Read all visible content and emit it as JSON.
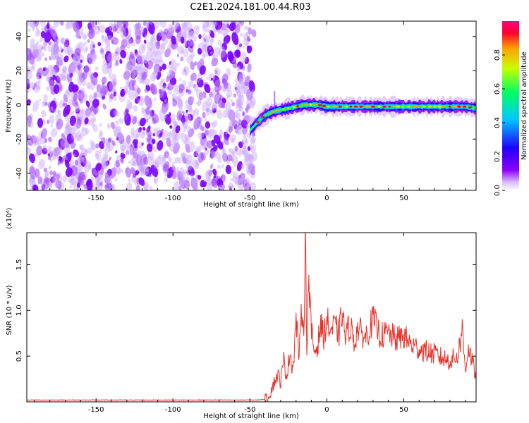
{
  "title": "C2E1.2024.181.00.44.R03",
  "chart_data": [
    {
      "type": "heatmap",
      "xlabel": "Height of straight line (km)",
      "ylabel": "Frequency (Hz)",
      "xlim": [
        -195,
        97
      ],
      "ylim": [
        -50,
        49
      ],
      "xticks": [
        -150,
        -100,
        -50,
        0,
        50
      ],
      "yticks": [
        -40,
        -20,
        0,
        20,
        40
      ],
      "colorbar": {
        "label": "Normalized spectral amplitude",
        "range": [
          0,
          1
        ],
        "ticks": [
          0.0,
          0.2,
          0.4,
          0.6,
          0.8
        ],
        "tick_labels": [
          "0.0",
          "0.2",
          "0.4",
          "0.6",
          "0.8"
        ],
        "colormap": [
          "#ffffff",
          "#8a00ff",
          "#2000ff",
          "#00c8ff",
          "#00ff60",
          "#c8ff00",
          "#ffa000",
          "#ff0030",
          "#ff0080"
        ]
      },
      "noise_region_x": [
        -195,
        -47
      ],
      "ridge": {
        "x": [
          -50,
          -45,
          -40,
          -35,
          -30,
          -25,
          -20,
          -15,
          -10,
          -5,
          0,
          10,
          20,
          30,
          40,
          50,
          60,
          70,
          80,
          90,
          97
        ],
        "y": [
          -15,
          -10,
          -6,
          -4,
          -3,
          -2,
          -1,
          0,
          0,
          0,
          -1,
          -1,
          -1,
          -1,
          -1,
          -1,
          -1,
          -1,
          -1,
          -1,
          -2
        ]
      }
    },
    {
      "type": "line",
      "xlabel": "Height of straight line (km)",
      "ylabel": "SNR (10 * v/v)",
      "y_multiplier_label": "(x10⁴)",
      "xlim": [
        -195,
        97
      ],
      "ylim": [
        0,
        1.85
      ],
      "xticks": [
        -150,
        -100,
        -50,
        0,
        50
      ],
      "yticks": [
        0.5,
        1.0,
        1.5
      ],
      "y_tick_labels": [
        "0.5",
        "1.0",
        "1.5"
      ],
      "color": "#e8322a",
      "series": [
        {
          "x": [
            -195,
            -180,
            -160,
            -140,
            -120,
            -100,
            -80,
            -60,
            -45,
            -40,
            -38,
            -35,
            -32,
            -30,
            -28,
            -26,
            -24,
            -22,
            -20,
            -18,
            -16,
            -15,
            -14,
            -13,
            -12,
            -10,
            -8,
            -6,
            -4,
            -2,
            0,
            2,
            5,
            8,
            10,
            12,
            15,
            18,
            20,
            25,
            30,
            35,
            40,
            45,
            50,
            55,
            60,
            65,
            70,
            75,
            80,
            85,
            88,
            90,
            92,
            95,
            97
          ],
          "y": [
            0.02,
            0.02,
            0.02,
            0.02,
            0.02,
            0.02,
            0.02,
            0.02,
            0.02,
            0.03,
            0.05,
            0.18,
            0.3,
            0.22,
            0.45,
            0.28,
            0.55,
            0.35,
            0.9,
            0.5,
            1.1,
            0.7,
            1.85,
            0.6,
            1.35,
            0.75,
            0.55,
            0.62,
            0.85,
            0.72,
            0.9,
            0.78,
            0.82,
            0.75,
            1.0,
            0.7,
            0.85,
            0.65,
            0.8,
            0.7,
            0.9,
            0.72,
            0.75,
            0.68,
            0.72,
            0.62,
            0.58,
            0.55,
            0.52,
            0.48,
            0.45,
            0.5,
            0.8,
            0.35,
            0.6,
            0.4,
            0.25
          ]
        }
      ]
    }
  ]
}
